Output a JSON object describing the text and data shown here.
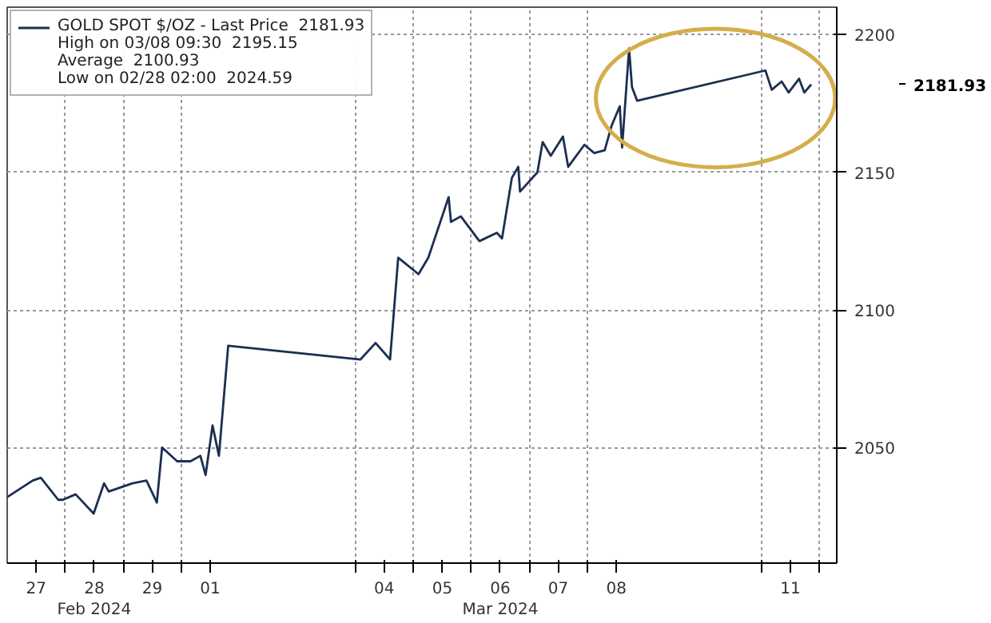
{
  "chart_data": {
    "type": "line",
    "series": [
      {
        "name": "GOLD SPOT $/OZ - Last Price  2181.93",
        "color": "#1c2f52",
        "x": [
          "2024-02-27T00:00",
          "2024-02-27T10:34",
          "2024-02-27T13:55",
          "2024-02-27T21:07",
          "2024-02-27T23:02",
          "2024-02-28T04:19",
          "2024-02-28T11:46",
          "2024-02-28T16:05",
          "2024-02-28T18:00",
          "2024-02-29T03:50",
          "2024-02-29T09:36",
          "2024-02-29T13:55",
          "2024-02-29T16:05",
          "2024-02-29T22:19",
          "2024-03-01T03:50",
          "2024-03-01T07:55",
          "2024-03-01T10:05",
          "2024-03-01T12:58",
          "2024-03-01T15:36",
          "2024-03-01T19:26",
          "2024-03-04T02:10",
          "2024-03-04T08:24",
          "2024-03-04T14:24",
          "2024-03-04T17:46",
          "2024-03-05T02:10",
          "2024-03-05T06:14",
          "2024-03-05T14:38",
          "2024-03-05T15:36",
          "2024-03-05T19:41",
          "2024-03-06T03:22",
          "2024-03-06T10:34",
          "2024-03-06T12:43",
          "2024-03-06T16:48",
          "2024-03-06T19:26",
          "2024-03-06T20:10",
          "2024-03-07T03:22",
          "2024-03-07T05:31",
          "2024-03-07T08:53",
          "2024-03-07T13:55",
          "2024-03-07T16:05",
          "2024-03-07T22:48",
          "2024-03-08T02:53",
          "2024-03-08T07:12",
          "2024-03-08T10:05",
          "2024-03-08T13:26",
          "2024-03-08T14:24",
          "2024-03-08T17:17",
          "2024-03-08T18:29",
          "2024-03-08T20:38",
          "2024-03-11T01:41",
          "2024-03-11T04:19",
          "2024-03-11T08:24",
          "2024-03-11T11:17",
          "2024-03-11T15:36",
          "2024-03-11T17:46",
          "2024-03-11T20:38"
        ],
        "values": [
          2032,
          2038,
          2039,
          2031,
          2031,
          2033,
          2026,
          2037,
          2034,
          2037,
          2038,
          2030,
          2050,
          2045,
          2045,
          2047,
          2040,
          2058,
          2047,
          2087,
          2082,
          2088,
          2082,
          2119,
          2113,
          2119,
          2141,
          2132,
          2134,
          2125,
          2128,
          2126,
          2148,
          2152,
          2143,
          2150,
          2161,
          2156,
          2163,
          2152,
          2160,
          2157,
          2158,
          2167,
          2174,
          2159,
          2195,
          2181,
          2176,
          2187,
          2180,
          2183,
          2179,
          2184,
          2179,
          2181.93
        ]
      }
    ],
    "xlim": [
      "2024-02-27T00:00",
      "2024-03-12T07:12"
    ],
    "ylim": [
      2008,
      2210
    ],
    "xticks": [
      {
        "value": "2024-02-27T12:00",
        "label": "27"
      },
      {
        "value": "2024-02-28T00:00",
        "label": null
      },
      {
        "value": "2024-02-28T12:00",
        "label": "28\nFeb 2024"
      },
      {
        "value": "2024-02-29T00:00",
        "label": null
      },
      {
        "value": "2024-02-29T12:00",
        "label": "29"
      },
      {
        "value": "2024-03-01T00:00",
        "label": null
      },
      {
        "value": "2024-03-01T12:00",
        "label": "01"
      },
      {
        "value": "2024-03-04T00:00",
        "label": null
      },
      {
        "value": "2024-03-04T12:00",
        "label": "04"
      },
      {
        "value": "2024-03-05T00:00",
        "label": null
      },
      {
        "value": "2024-03-05T12:00",
        "label": "05"
      },
      {
        "value": "2024-03-06T00:00",
        "label": null
      },
      {
        "value": "2024-03-06T12:00",
        "label": "06\nMar 2024"
      },
      {
        "value": "2024-03-07T00:00",
        "label": null
      },
      {
        "value": "2024-03-07T12:00",
        "label": "07"
      },
      {
        "value": "2024-03-08T00:00",
        "label": null
      },
      {
        "value": "2024-03-08T12:00",
        "label": "08"
      },
      {
        "value": "2024-03-11T00:00",
        "label": null
      },
      {
        "value": "2024-03-11T12:00",
        "label": "11"
      },
      {
        "value": "2024-03-12T00:00",
        "label": null
      }
    ],
    "yticks": [
      2050,
      2100,
      2150,
      2200
    ],
    "grid": true,
    "legend": "top left",
    "annotations": [
      "High on 03/08 09:30  2195.15",
      "Average  2100.93",
      "Low on 02/28 02:00  2024.59",
      "2181.93"
    ]
  }
}
